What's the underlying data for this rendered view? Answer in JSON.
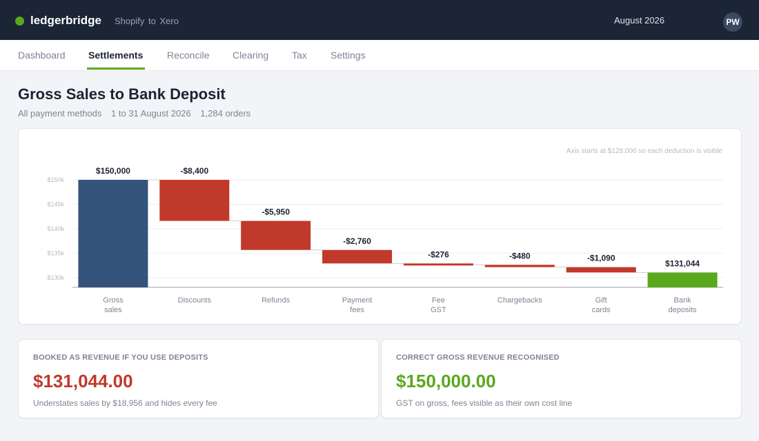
{
  "app": {
    "name": "ledgerbridge",
    "integration_from": "Shopify",
    "integration_to": "to",
    "integration_target": "Xero",
    "period": "August 2026",
    "user_initials": "PW"
  },
  "colors": {
    "brand": "#5aa81e",
    "topbar": "#1c2536",
    "gross_bar": "#34537a",
    "deduction": "#c0392b",
    "net_bar": "#5aa81e"
  },
  "nav": {
    "tabs": [
      {
        "label": "Dashboard",
        "active": false
      },
      {
        "label": "Settlements",
        "active": true
      },
      {
        "label": "Reconcile",
        "active": false
      },
      {
        "label": "Clearing",
        "active": false
      },
      {
        "label": "Tax",
        "active": false
      },
      {
        "label": "Settings",
        "active": false
      }
    ]
  },
  "page": {
    "title": "Gross Sales to Bank Deposit",
    "filter": "All payment methods",
    "date_range": "1 to 31 August 2026",
    "orders": "1,284 orders"
  },
  "chart_data": {
    "type": "bar",
    "subtype": "waterfall",
    "note": "Axis starts at $128,000 so each deduction is visible",
    "ylim": [
      128000,
      150000
    ],
    "y_ticks": [
      {
        "value": 130000,
        "label": "$130k"
      },
      {
        "value": 135000,
        "label": "$135k"
      },
      {
        "value": 140000,
        "label": "$140k"
      },
      {
        "value": 145000,
        "label": "$145k"
      },
      {
        "value": 150000,
        "label": "$150k"
      }
    ],
    "grid": true,
    "steps": [
      {
        "category": [
          "Gross",
          "sales"
        ],
        "kind": "total",
        "value": 150000,
        "label": "$150,000"
      },
      {
        "category": [
          "Discounts"
        ],
        "kind": "deduction",
        "value": -8400,
        "label": "-$8,400"
      },
      {
        "category": [
          "Refunds"
        ],
        "kind": "deduction",
        "value": -5950,
        "label": "-$5,950"
      },
      {
        "category": [
          "Payment",
          "fees"
        ],
        "kind": "deduction",
        "value": -2760,
        "label": "-$2,760"
      },
      {
        "category": [
          "Fee",
          "GST"
        ],
        "kind": "deduction",
        "value": -276,
        "label": "-$276"
      },
      {
        "category": [
          "Chargebacks"
        ],
        "kind": "deduction",
        "value": -480,
        "label": "-$480"
      },
      {
        "category": [
          "Gift",
          "cards"
        ],
        "kind": "deduction",
        "value": -1090,
        "label": "-$1,090"
      },
      {
        "category": [
          "Bank",
          "deposits"
        ],
        "kind": "total",
        "value": 131044,
        "label": "$131,044"
      }
    ]
  },
  "stats": {
    "deposits": {
      "label": "BOOKED AS REVENUE IF YOU USE DEPOSITS",
      "value": "$131,044.00",
      "note": "Understates sales by $18,956 and hides every fee",
      "color": "#c0392b"
    },
    "gross": {
      "label": "CORRECT GROSS REVENUE RECOGNISED",
      "value": "$150,000.00",
      "note": "GST on gross, fees visible as their own cost line",
      "color": "#5aa81e"
    }
  }
}
